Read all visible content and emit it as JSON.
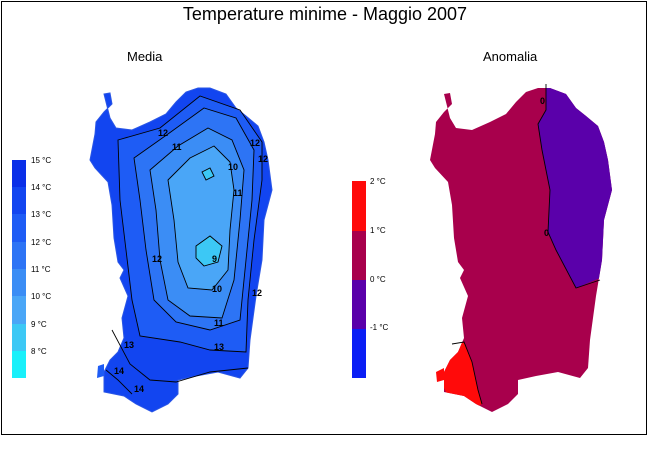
{
  "title": "Temperature minime - Maggio 2007",
  "panels": {
    "media": {
      "subtitle": "Media",
      "legend": [
        "15 °C",
        "14 °C",
        "13 °C",
        "12 °C",
        "11 °C",
        "10 °C",
        "9 °C",
        "8 °C"
      ],
      "legend_colors": [
        "#0a2fe8",
        "#1245f0",
        "#1e5cf5",
        "#2d74f5",
        "#3b8df5",
        "#4aa6f7",
        "#3cc8f5",
        "#19f0fa"
      ],
      "contour_labels": [
        "12",
        "11",
        "10",
        "11",
        "12",
        "9",
        "10",
        "12",
        "11",
        "12",
        "13",
        "13",
        "14",
        "14",
        "12"
      ]
    },
    "anomalia": {
      "subtitle": "Anomalia",
      "legend": [
        "2 °C",
        "1 °C",
        "0 °C",
        "-1 °C"
      ],
      "legend_colors": [
        "#ff0a0a",
        "#a8004c",
        "#5a00aa",
        "#0a1ef5"
      ],
      "contour_labels": [
        "0",
        "0"
      ]
    }
  }
}
